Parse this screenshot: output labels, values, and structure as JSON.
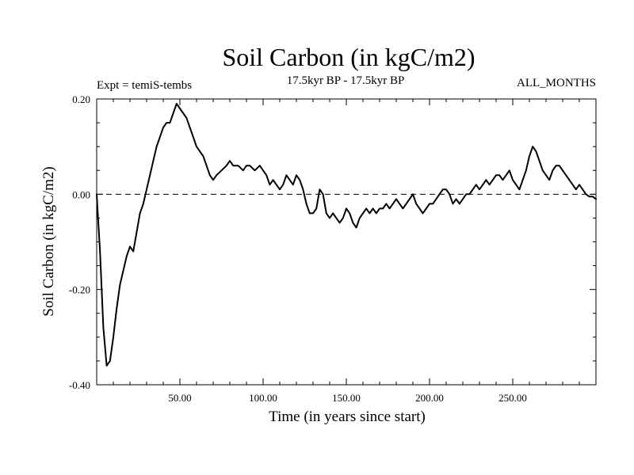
{
  "chart_data": {
    "type": "line",
    "title": "Soil Carbon (in kgC/m2)",
    "experiment": "Expt = temiS-tembs",
    "period": "17.5kyr BP - 17.5kyr BP",
    "months": "ALL_MONTHS",
    "xlabel": "Time (in years since start)",
    "ylabel": "Soil Carbon (in kgC/m2)",
    "xlim": [
      0,
      300
    ],
    "ylim": [
      -0.4,
      0.2
    ],
    "xticks": [
      {
        "value": 50,
        "label": "50.00"
      },
      {
        "value": 100,
        "label": "100.00"
      },
      {
        "value": 150,
        "label": "150.00"
      },
      {
        "value": 200,
        "label": "200.00"
      },
      {
        "value": 250,
        "label": "250.00"
      }
    ],
    "yticks": [
      {
        "value": -0.4,
        "label": "-0.40"
      },
      {
        "value": -0.2,
        "label": "-0.20"
      },
      {
        "value": 0.0,
        "label": "0.00"
      },
      {
        "value": 0.2,
        "label": "0.20"
      }
    ],
    "reference_line": {
      "y": 0.0,
      "style": "dashed"
    },
    "series": [
      {
        "name": "Soil Carbon",
        "x": [
          0,
          2,
          4,
          6,
          8,
          10,
          12,
          14,
          16,
          18,
          20,
          22,
          24,
          26,
          28,
          30,
          32,
          34,
          36,
          38,
          40,
          42,
          44,
          46,
          48,
          50,
          52,
          54,
          56,
          58,
          60,
          62,
          64,
          66,
          68,
          70,
          72,
          75,
          78,
          80,
          82,
          85,
          88,
          90,
          92,
          95,
          98,
          100,
          102,
          104,
          106,
          108,
          110,
          112,
          114,
          116,
          118,
          120,
          122,
          124,
          126,
          128,
          130,
          132,
          134,
          136,
          138,
          140,
          142,
          144,
          146,
          148,
          150,
          152,
          154,
          156,
          158,
          160,
          162,
          164,
          166,
          168,
          170,
          172,
          174,
          176,
          178,
          180,
          182,
          184,
          186,
          188,
          190,
          192,
          194,
          196,
          198,
          200,
          202,
          204,
          206,
          208,
          210,
          212,
          214,
          216,
          218,
          220,
          222,
          224,
          226,
          228,
          230,
          232,
          234,
          236,
          238,
          240,
          242,
          244,
          246,
          248,
          250,
          252,
          254,
          256,
          258,
          260,
          262,
          264,
          266,
          268,
          270,
          272,
          274,
          276,
          278,
          280,
          282,
          284,
          286,
          288,
          290,
          292,
          294,
          296,
          298,
          300
        ],
        "y": [
          0.0,
          -0.12,
          -0.28,
          -0.36,
          -0.35,
          -0.3,
          -0.24,
          -0.19,
          -0.16,
          -0.13,
          -0.11,
          -0.12,
          -0.08,
          -0.04,
          -0.02,
          0.01,
          0.04,
          0.07,
          0.1,
          0.12,
          0.14,
          0.15,
          0.15,
          0.17,
          0.19,
          0.18,
          0.17,
          0.16,
          0.14,
          0.12,
          0.1,
          0.09,
          0.08,
          0.06,
          0.04,
          0.03,
          0.04,
          0.05,
          0.06,
          0.07,
          0.06,
          0.06,
          0.05,
          0.06,
          0.06,
          0.05,
          0.06,
          0.05,
          0.04,
          0.02,
          0.03,
          0.02,
          0.01,
          0.02,
          0.04,
          0.03,
          0.02,
          0.04,
          0.03,
          0.01,
          -0.02,
          -0.04,
          -0.04,
          -0.03,
          0.01,
          0.0,
          -0.04,
          -0.05,
          -0.04,
          -0.05,
          -0.06,
          -0.05,
          -0.03,
          -0.04,
          -0.06,
          -0.07,
          -0.05,
          -0.04,
          -0.03,
          -0.04,
          -0.03,
          -0.04,
          -0.03,
          -0.03,
          -0.02,
          -0.03,
          -0.02,
          -0.01,
          -0.02,
          -0.03,
          -0.02,
          -0.01,
          0.0,
          -0.02,
          -0.03,
          -0.04,
          -0.03,
          -0.02,
          -0.02,
          -0.01,
          0.0,
          0.01,
          0.01,
          0.0,
          -0.02,
          -0.01,
          -0.02,
          -0.01,
          0.0,
          0.0,
          0.01,
          0.02,
          0.01,
          0.02,
          0.03,
          0.02,
          0.03,
          0.04,
          0.04,
          0.03,
          0.04,
          0.05,
          0.03,
          0.02,
          0.01,
          0.03,
          0.05,
          0.08,
          0.1,
          0.09,
          0.07,
          0.05,
          0.04,
          0.03,
          0.05,
          0.06,
          0.06,
          0.05,
          0.04,
          0.03,
          0.02,
          0.01,
          0.02,
          0.01,
          0.0,
          -0.005,
          -0.005,
          -0.01
        ]
      }
    ]
  }
}
